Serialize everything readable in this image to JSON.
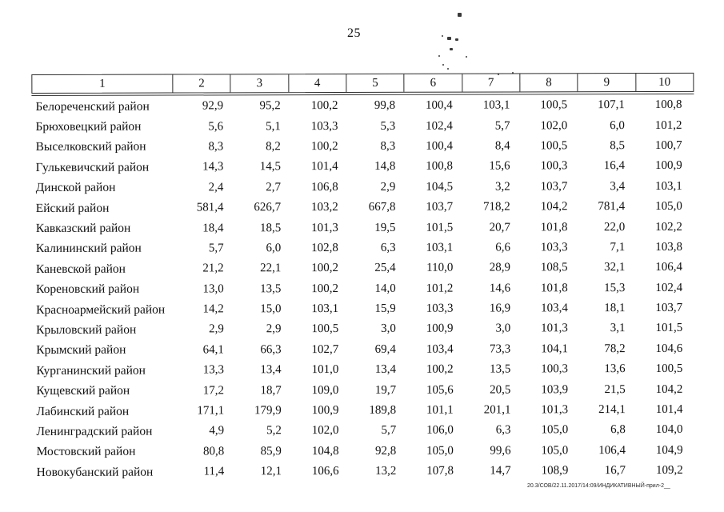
{
  "page": {
    "number": "25",
    "footer": "20.3/СОВ/22.11.2017/14:09/ИНДИКАТИВНЫЙ-прил-2__"
  },
  "table": {
    "columns": [
      "1",
      "2",
      "3",
      "4",
      "5",
      "6",
      "7",
      "8",
      "9",
      "10"
    ],
    "rows": [
      {
        "name": "Белореченский район",
        "values": [
          "92,9",
          "95,2",
          "100,2",
          "99,8",
          "100,4",
          "103,1",
          "100,5",
          "107,1",
          "100,8"
        ]
      },
      {
        "name": "Брюховецкий район",
        "values": [
          "5,6",
          "5,1",
          "103,3",
          "5,3",
          "102,4",
          "5,7",
          "102,0",
          "6,0",
          "101,2"
        ]
      },
      {
        "name": "Выселковский район",
        "values": [
          "8,3",
          "8,2",
          "100,2",
          "8,3",
          "100,4",
          "8,4",
          "100,5",
          "8,5",
          "100,7"
        ]
      },
      {
        "name": "Гулькевичский район",
        "values": [
          "14,3",
          "14,5",
          "101,4",
          "14,8",
          "100,8",
          "15,6",
          "100,3",
          "16,4",
          "100,9"
        ]
      },
      {
        "name": "Динской район",
        "values": [
          "2,4",
          "2,7",
          "106,8",
          "2,9",
          "104,5",
          "3,2",
          "103,7",
          "3,4",
          "103,1"
        ]
      },
      {
        "name": "Ейский район",
        "values": [
          "581,4",
          "626,7",
          "103,2",
          "667,8",
          "103,7",
          "718,2",
          "104,2",
          "781,4",
          "105,0"
        ]
      },
      {
        "name": "Кавказский район",
        "values": [
          "18,4",
          "18,5",
          "101,3",
          "19,5",
          "101,5",
          "20,7",
          "101,8",
          "22,0",
          "102,2"
        ]
      },
      {
        "name": "Калининский район",
        "values": [
          "5,7",
          "6,0",
          "102,8",
          "6,3",
          "103,1",
          "6,6",
          "103,3",
          "7,1",
          "103,8"
        ]
      },
      {
        "name": "Каневской район",
        "values": [
          "21,2",
          "22,1",
          "100,2",
          "25,4",
          "110,0",
          "28,9",
          "108,5",
          "32,1",
          "106,4"
        ]
      },
      {
        "name": "Кореновский район",
        "values": [
          "13,0",
          "13,5",
          "100,2",
          "14,0",
          "101,2",
          "14,6",
          "101,8",
          "15,3",
          "102,4"
        ]
      },
      {
        "name": "Красноармейский район",
        "values": [
          "14,2",
          "15,0",
          "103,1",
          "15,9",
          "103,3",
          "16,9",
          "103,4",
          "18,1",
          "103,7"
        ]
      },
      {
        "name": "Крыловский район",
        "values": [
          "2,9",
          "2,9",
          "100,5",
          "3,0",
          "100,9",
          "3,0",
          "101,3",
          "3,1",
          "101,5"
        ]
      },
      {
        "name": "Крымский район",
        "values": [
          "64,1",
          "66,3",
          "102,7",
          "69,4",
          "103,4",
          "73,3",
          "104,1",
          "78,2",
          "104,6"
        ]
      },
      {
        "name": "Курганинский район",
        "values": [
          "13,3",
          "13,4",
          "101,0",
          "13,4",
          "100,2",
          "13,5",
          "100,3",
          "13,6",
          "100,5"
        ]
      },
      {
        "name": "Кущевский район",
        "values": [
          "17,2",
          "18,7",
          "109,0",
          "19,7",
          "105,6",
          "20,5",
          "103,9",
          "21,5",
          "104,2"
        ]
      },
      {
        "name": "Лабинский район",
        "values": [
          "171,1",
          "179,9",
          "100,9",
          "189,8",
          "101,1",
          "201,1",
          "101,3",
          "214,1",
          "101,4"
        ]
      },
      {
        "name": "Ленинградский район",
        "values": [
          "4,9",
          "5,2",
          "102,0",
          "5,7",
          "106,0",
          "6,3",
          "105,0",
          "6,8",
          "104,0"
        ]
      },
      {
        "name": "Мостовский район",
        "values": [
          "80,8",
          "85,9",
          "104,8",
          "92,8",
          "105,0",
          "99,6",
          "105,0",
          "106,4",
          "104,9"
        ]
      },
      {
        "name": "Новокубанский район",
        "values": [
          "11,4",
          "12,1",
          "106,6",
          "13,2",
          "107,8",
          "14,7",
          "108,9",
          "16,7",
          "109,2"
        ]
      }
    ]
  }
}
